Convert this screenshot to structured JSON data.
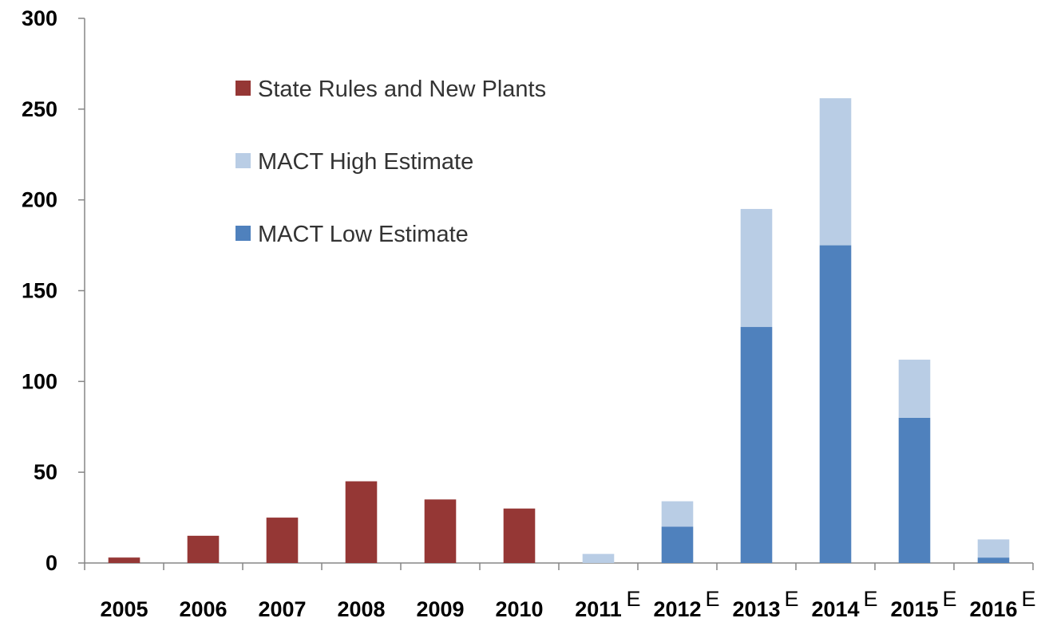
{
  "chart_data": {
    "type": "bar",
    "stacked": true,
    "categories": [
      "2005",
      "2006",
      "2007",
      "2008",
      "2009",
      "2010",
      "2011",
      "2012",
      "2013",
      "2014",
      "2015",
      "2016"
    ],
    "category_superscripts": [
      "",
      "",
      "",
      "",
      "",
      "",
      "E",
      "E",
      "E",
      "E",
      "E",
      "E"
    ],
    "series": [
      {
        "name": "State Rules and New Plants",
        "color": "#953735",
        "values": [
          3,
          15,
          25,
          45,
          35,
          30,
          0,
          0,
          0,
          0,
          0,
          0
        ]
      },
      {
        "name": "MACT Low Estimate",
        "color": "#4f81bd",
        "values": [
          0,
          0,
          0,
          0,
          0,
          0,
          0,
          20,
          130,
          175,
          80,
          3
        ]
      },
      {
        "name": "MACT High Estimate",
        "color": "#b9cde5",
        "values": [
          0,
          0,
          0,
          0,
          0,
          0,
          5,
          14,
          65,
          81,
          32,
          10
        ]
      }
    ],
    "legend_order": [
      "State Rules and New Plants",
      "MACT High Estimate",
      "MACT Low Estimate"
    ],
    "y_ticks": [
      0,
      50,
      100,
      150,
      200,
      250,
      300
    ],
    "ylim": [
      0,
      300
    ],
    "grid": false,
    "legend_position": "top-left-inside",
    "title": "",
    "xlabel": "",
    "ylabel": ""
  }
}
